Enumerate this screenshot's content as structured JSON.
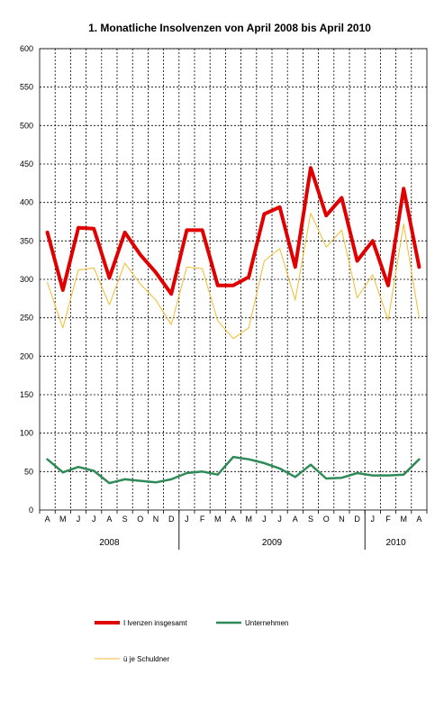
{
  "chart_data": {
    "type": "line",
    "title": "1. Monatliche Insolvenzen von April 2008 bis April 2010",
    "xlabel": "",
    "ylabel": "",
    "ylim": [
      0,
      600
    ],
    "yticks": [
      0,
      50,
      100,
      150,
      200,
      250,
      300,
      350,
      400,
      450,
      500,
      550,
      600
    ],
    "grid": true,
    "categories": [
      "A",
      "M",
      "J",
      "J",
      "A",
      "S",
      "O",
      "N",
      "D",
      "J",
      "F",
      "M",
      "A",
      "M",
      "J",
      "J",
      "A",
      "S",
      "O",
      "N",
      "D",
      "J",
      "F",
      "M",
      "A"
    ],
    "years": [
      {
        "label": "2008",
        "from": 0,
        "to": 8
      },
      {
        "label": "2009",
        "from": 9,
        "to": 20
      },
      {
        "label": "2010",
        "from": 21,
        "to": 24
      }
    ],
    "legend_position": "bottom",
    "series": [
      {
        "name": "I   lvenzen insgesamt",
        "color": "#e00000",
        "width": 4,
        "values": [
          361,
          286,
          367,
          366,
          302,
          361,
          332,
          309,
          281,
          364,
          364,
          292,
          292,
          303,
          385,
          394,
          316,
          445,
          383,
          406,
          324,
          350,
          292,
          418,
          316
        ]
      },
      {
        "name": "Unternehmen",
        "color": "#2e8b57",
        "width": 2.5,
        "values": [
          66,
          49,
          56,
          51,
          35,
          40,
          38,
          36,
          40,
          48,
          50,
          46,
          69,
          66,
          61,
          54,
          43,
          59,
          41,
          42,
          48,
          45,
          45,
          46,
          66
        ]
      },
      {
        "name": "ü   je Schuldner",
        "color": "#f2bc2c",
        "width": 1,
        "values": [
          296,
          237,
          312,
          315,
          267,
          321,
          294,
          273,
          241,
          316,
          314,
          246,
          223,
          237,
          324,
          340,
          273,
          386,
          342,
          364,
          276,
          306,
          247,
          372,
          250
        ]
      }
    ]
  }
}
